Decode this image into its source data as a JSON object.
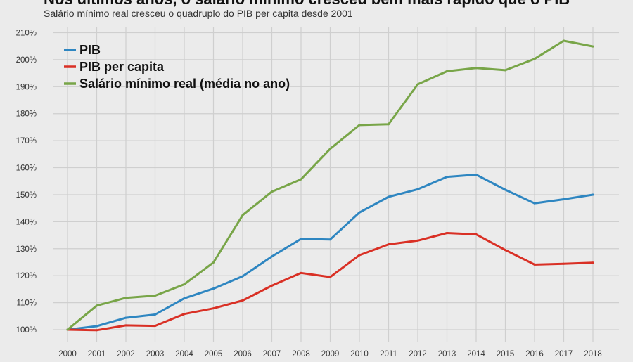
{
  "chart_data": {
    "type": "line",
    "title": "Nos últimos anos, o salário mínimo cresceu bem mais rápido que o PIB",
    "subtitle": "Salário mínimo real cresceu o quadruplo do PIB per capita desde 2001",
    "xlabel": "",
    "ylabel": "",
    "ylim": [
      100,
      210
    ],
    "grid": true,
    "legend_position": "top-left",
    "x": [
      "2000",
      "2001",
      "2002",
      "2003",
      "2004",
      "2005",
      "2006",
      "2007",
      "2008",
      "2009",
      "2010",
      "2011",
      "2012",
      "2013",
      "2014",
      "2015",
      "2016",
      "2017",
      "2018"
    ],
    "yticks": [
      "100%",
      "110%",
      "120%",
      "130%",
      "140%",
      "150%",
      "160%",
      "170%",
      "180%",
      "190%",
      "200%",
      "210%"
    ],
    "series": [
      {
        "name": "PIB",
        "color": "#2e86c1",
        "values": [
          100,
          101.3,
          104.4,
          105.6,
          111.6,
          115.2,
          119.8,
          127.1,
          133.6,
          133.4,
          143.4,
          149.2,
          152,
          156.6,
          157.4,
          151.8,
          146.8,
          148.3,
          150
        ]
      },
      {
        "name": "PIB per capita",
        "color": "#d93025",
        "values": [
          100,
          99.8,
          101.6,
          101.4,
          105.8,
          107.9,
          110.8,
          116.3,
          121,
          119.5,
          127.6,
          131.6,
          133,
          135.8,
          135.3,
          129.5,
          124.1,
          124.4,
          124.8
        ]
      },
      {
        "name": "Salário mínimo real (média no ano)",
        "color": "#78a548",
        "values": [
          100,
          108.9,
          111.8,
          112.6,
          116.8,
          124.9,
          142.4,
          151.1,
          155.7,
          167,
          175.8,
          176.1,
          190.9,
          195.7,
          196.9,
          196.1,
          200.3,
          207,
          204.9
        ]
      }
    ]
  }
}
